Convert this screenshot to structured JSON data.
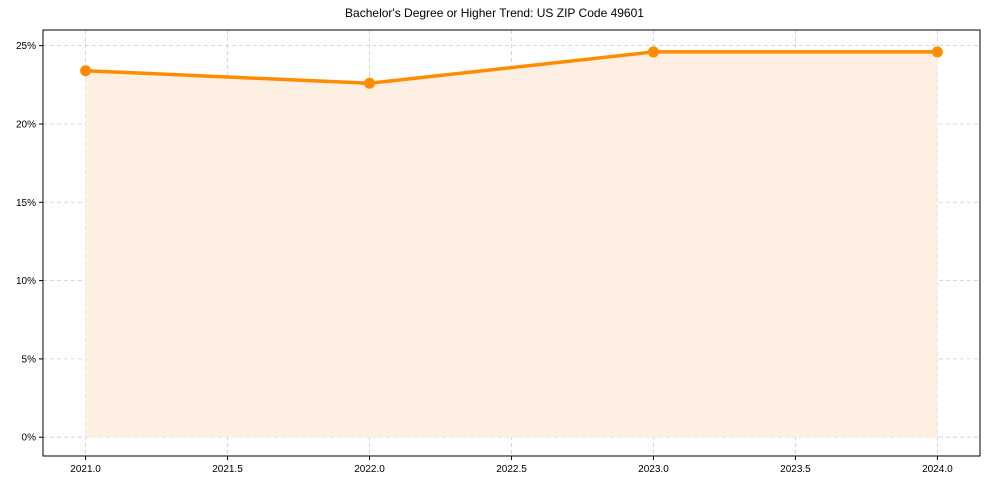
{
  "chart_data": {
    "type": "line",
    "title": "Bachelor's Degree or Higher Trend: US ZIP Code 49601",
    "xlabel": "",
    "ylabel": "",
    "x": [
      2021,
      2022,
      2023,
      2024
    ],
    "series": [
      {
        "name": "Bachelor's Degree or Higher",
        "values": [
          23.4,
          22.6,
          24.6,
          24.6
        ],
        "color": "#FF8C00",
        "fill": "#FDF0E3"
      }
    ],
    "x_ticks": [
      "2021.0",
      "2021.5",
      "2022.0",
      "2022.5",
      "2023.0",
      "2023.5",
      "2024.0"
    ],
    "y_ticks": [
      "0%",
      "5%",
      "10%",
      "15%",
      "20%",
      "25%"
    ],
    "xlim": [
      2020.85,
      2024.15
    ],
    "ylim": [
      -1.2,
      26.0
    ],
    "grid": true,
    "legend": null
  },
  "colors": {
    "line": "#FF8C00",
    "fill": "#FDF0E3",
    "grid": "#cccccc"
  }
}
